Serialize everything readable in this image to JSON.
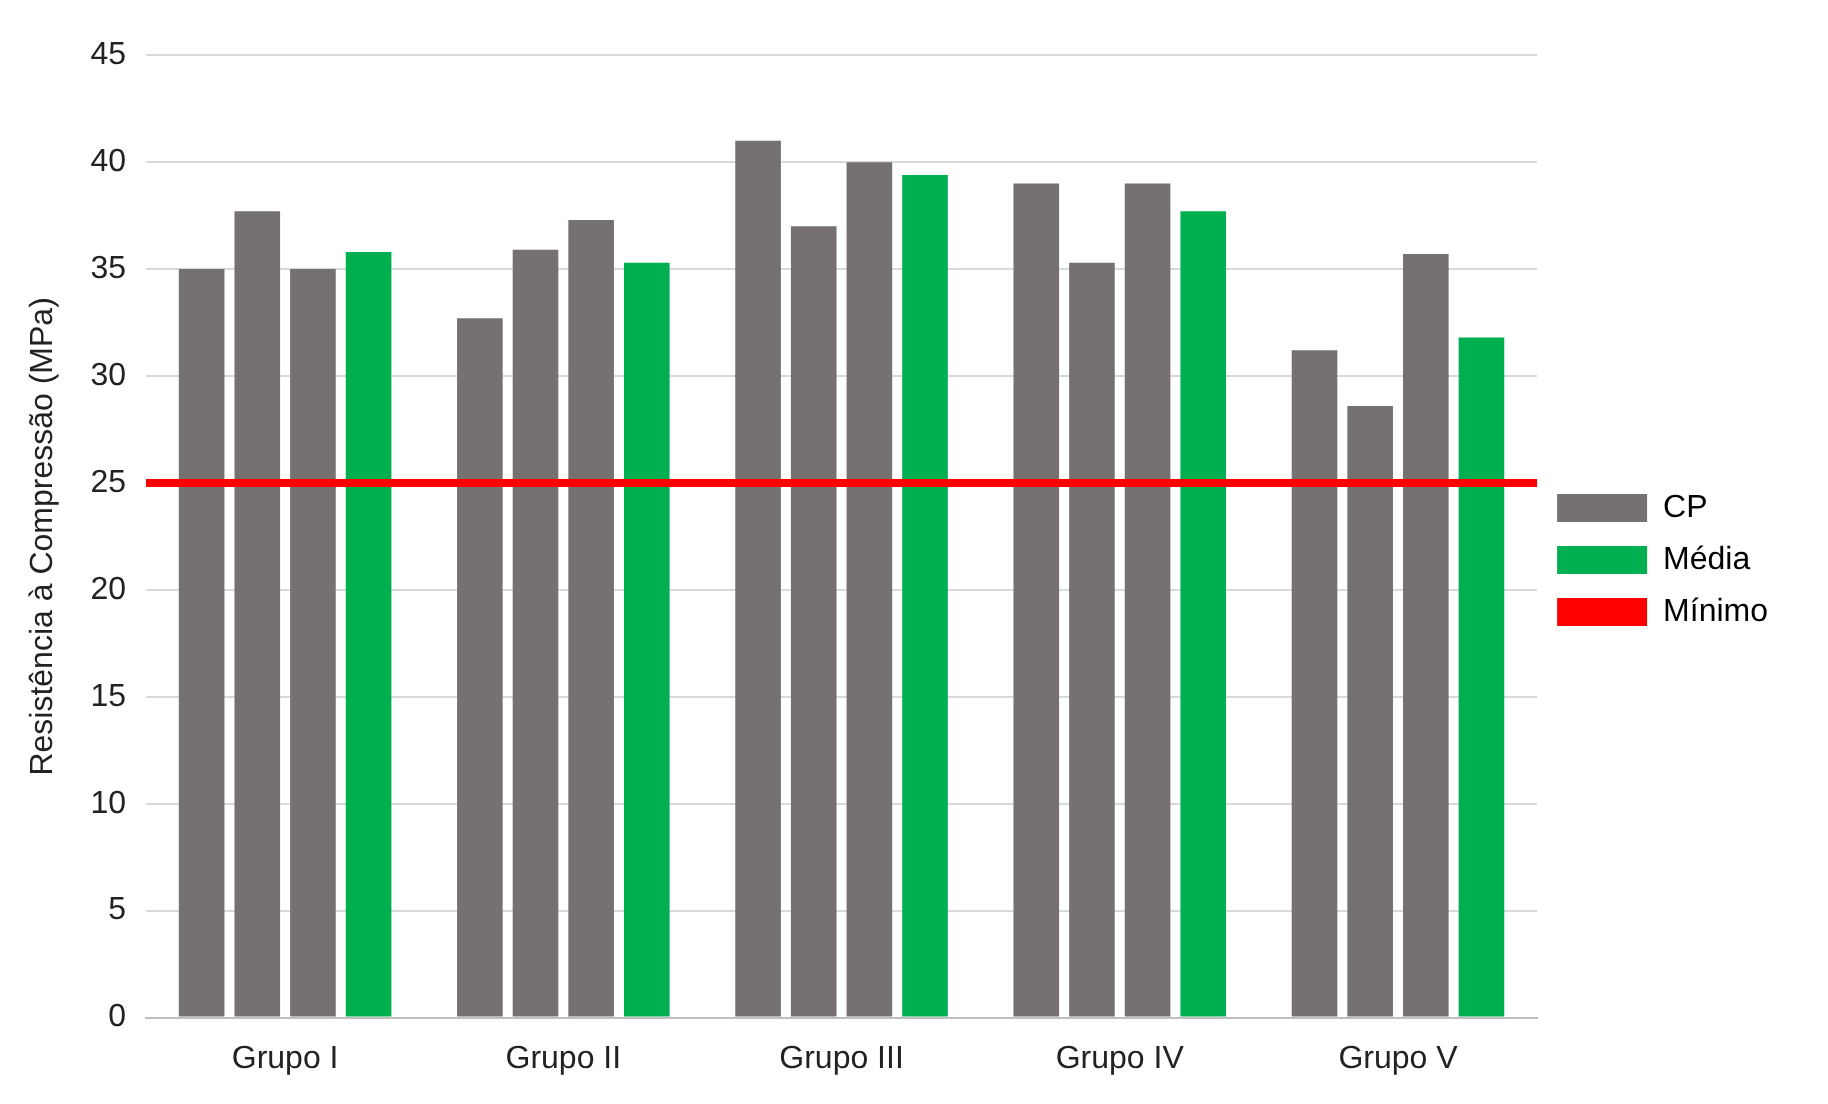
{
  "chart_data": {
    "type": "bar",
    "ylabel": "Resistência à Compressão (MPa)",
    "categories": [
      "Grupo I",
      "Grupo II",
      "Grupo III",
      "Grupo IV",
      "Grupo V"
    ],
    "series": [
      {
        "name": "CP",
        "color": "#767171",
        "values": [
          35.0,
          32.7,
          41.0,
          39.0,
          31.2
        ]
      },
      {
        "color": "#767171",
        "values": [
          37.7,
          35.9,
          37.0,
          35.3,
          28.6
        ]
      },
      {
        "color": "#767171",
        "values": [
          35.0,
          37.3,
          40.0,
          39.0,
          35.7
        ]
      },
      {
        "name": "Média",
        "color": "#00b050",
        "values": [
          35.8,
          35.3,
          39.4,
          37.7,
          31.8
        ]
      }
    ],
    "ref_lines": [
      {
        "axis": "y",
        "value": 25,
        "label": "Mínimo",
        "color": "#ff0000"
      }
    ],
    "ylim": [
      0,
      45
    ],
    "yticks": [
      0,
      5,
      10,
      15,
      20,
      25,
      30,
      35,
      40,
      45
    ],
    "grid": "y",
    "legend": "right"
  }
}
